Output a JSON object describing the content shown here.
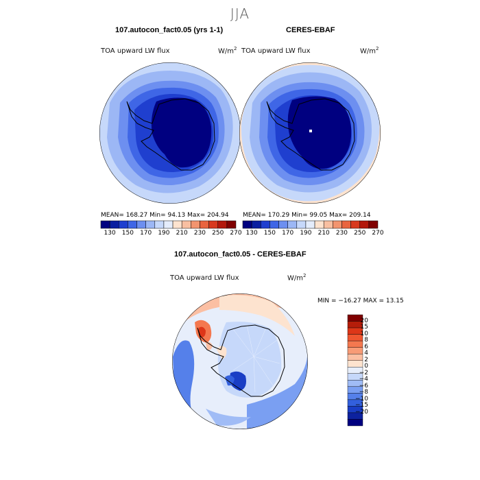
{
  "season": "JJA",
  "panel_left": {
    "title": "107.autocon_fact0.05 (yrs 1-1)",
    "variable": "TOA upward LW flux",
    "units_base": "W/m",
    "units_exp": "2",
    "stats": "MEAN= 168.27   Min=   94.13   Max= 204.94"
  },
  "panel_right": {
    "title": "CERES-EBAF",
    "variable": "TOA upward LW flux",
    "units_base": "W/m",
    "units_exp": "2",
    "stats": "MEAN= 170.29   Min=   99.05   Max= 209.14"
  },
  "panel_diff": {
    "title": "107.autocon_fact0.05 - CERES-EBAF",
    "variable": "TOA upward LW flux",
    "units_base": "W/m",
    "units_exp": "2",
    "stats": "MIN = −16.27  MAX =   13.15"
  },
  "colorbar_top": {
    "colors": [
      "#000080",
      "#0a1fa0",
      "#1f3fcf",
      "#3f66e6",
      "#6d8ff0",
      "#9cb7f5",
      "#c6d8fa",
      "#e4ecfb",
      "#fde3cf",
      "#f8bfa1",
      "#f2946f",
      "#e9643f",
      "#d8391e",
      "#b3170b",
      "#800000"
    ],
    "ticks": [
      "130",
      "150",
      "170",
      "190",
      "210",
      "230",
      "250",
      "270"
    ]
  },
  "colorbar_diff": {
    "colors": [
      "#800000",
      "#b51d0a",
      "#dd3618",
      "#ef5630",
      "#f4784f",
      "#f89b76",
      "#fbbfa3",
      "#fde3cf",
      "#e7eefb",
      "#c6d8fa",
      "#a0bcf6",
      "#7a9ff2",
      "#5580ea",
      "#3360dd",
      "#1a3ec5",
      "#0d229f",
      "#000080"
    ],
    "ticks": [
      "20",
      "15",
      "10",
      "8",
      "6",
      "4",
      "2",
      "0",
      "−2",
      "−4",
      "−6",
      "−8",
      "−10",
      "−15",
      "−20"
    ]
  },
  "colors": {
    "ocean_outer": "#c6d8fa",
    "ocean_mid": "#9cb7f5",
    "ocean_inner": "#6d8ff0",
    "ring_deep": "#3f66e6",
    "ring_deeper": "#1f3fcf",
    "ice_sheet": "#000080",
    "warm_rim": "#fde3cf",
    "diff_bg": "#e7eefb",
    "coast": "#000000"
  }
}
